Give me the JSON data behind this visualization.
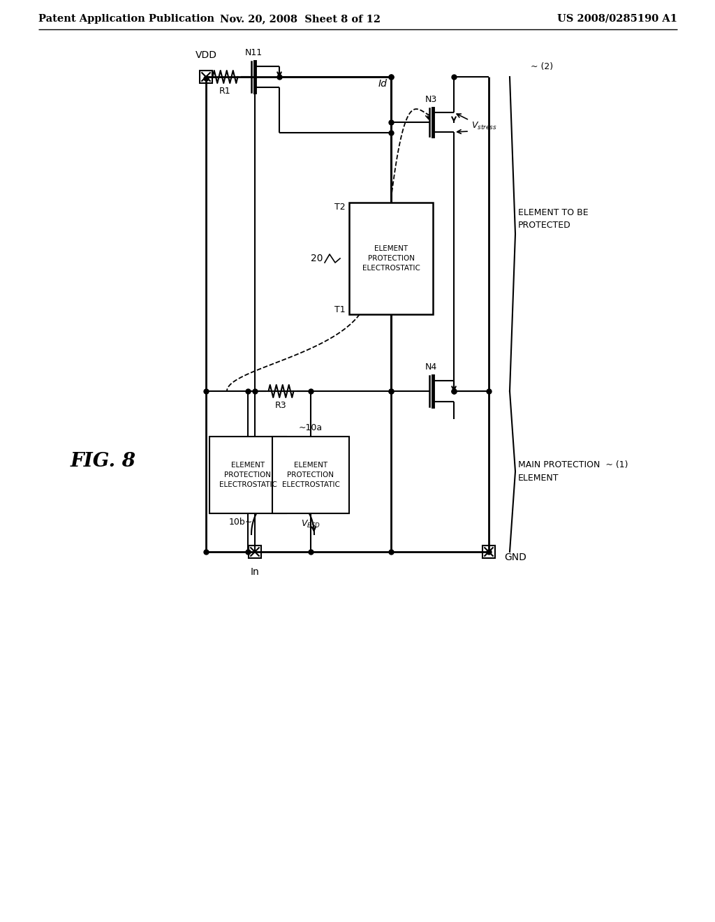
{
  "header_left": "Patent Application Publication",
  "header_mid": "Nov. 20, 2008  Sheet 8 of 12",
  "header_right": "US 2008/0285190 A1",
  "fig_label": "FIG. 8",
  "background_color": "#ffffff",
  "line_color": "#000000"
}
